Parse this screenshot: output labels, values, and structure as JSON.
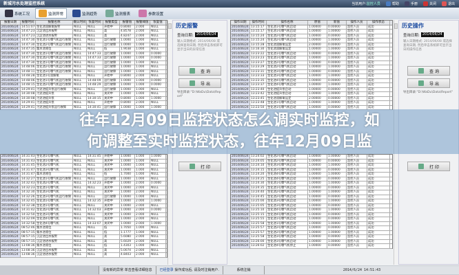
{
  "app": {
    "title": "新城污水处理监控系统",
    "current_user_label": "当前用户:",
    "current_user": "监控人员",
    "top_buttons": [
      {
        "label": "帮助",
        "icon": "help-icon",
        "color": "#4a7bc0"
      },
      {
        "label": "手册",
        "icon": "manual-icon",
        "color": "#446"
      },
      {
        "label": "关闭",
        "icon": "close-icon",
        "color": "#c33"
      },
      {
        "label": "退出",
        "icon": "exit-icon",
        "color": "#d55"
      }
    ]
  },
  "toolbar": [
    {
      "label": "系统工况",
      "icon": "gears-icon",
      "color": "#334"
    },
    {
      "label": "监测异常",
      "icon": "alarm-bell-icon",
      "color": "#e8a030",
      "active": true
    },
    {
      "label": "监测趋势",
      "icon": "trend-chart-icon",
      "color": "#2a4a90"
    },
    {
      "label": "监测报表",
      "icon": "report-icon",
      "color": "#7a9"
    },
    {
      "label": "参数设置",
      "icon": "settings-icon",
      "color": "#c7a"
    }
  ],
  "alarm_table": {
    "headers": [
      "报警日期",
      "报警时间",
      "报警名称",
      "确认时间",
      "恢复时间",
      "报警类型",
      "报警值",
      "报警阈值",
      "恢复值"
    ],
    "rows": [
      [
        "2014/06/24",
        "14:51:07",
        "生化池溶解氧报警",
        "NULL",
        "NULL",
        "开始中",
        "0.8000",
        "2.000",
        "NULL"
      ],
      [
        "2014/06/24",
        "14:47:23",
        "沉淀池出水报警",
        "NULL",
        "NULL",
        "高",
        "4.8578",
        "2.000",
        "NULL"
      ],
      [
        "2014/06/24",
        "14:47:23",
        "沉淀池进水报警",
        "NULL",
        "NULL",
        "高",
        "4.8247",
        "2.000",
        "NULL"
      ],
      [
        "2014/06/24",
        "14:47:30",
        "生化池1号曝气机运行故障",
        "NULL",
        "NULL",
        "运行故障",
        "1.0000",
        "1.000",
        "NULL"
      ],
      [
        "2014/06/24",
        "14:47:30",
        "生化池2号曝气机运行故障",
        "NULL",
        "NULL",
        "运行故障",
        "1.0000",
        "1.000",
        "NULL"
      ],
      [
        "2014/06/24",
        "14:47:35",
        "集水池液位",
        "NULL",
        "NULL",
        "低",
        "1.9038",
        "1.000",
        "NULL"
      ],
      [
        "2014/06/24",
        "14:47:30",
        "生化池1号曝气机运行故障",
        "NULL",
        "14:47:33",
        "运行故障",
        "1.0000",
        "1.000",
        "0.0000"
      ],
      [
        "2014/06/24",
        "14:47:30",
        "生化池2号曝气机运行故障",
        "NULL",
        "14:47:33",
        "运行故障",
        "1.0000",
        "1.000",
        "0.0000"
      ],
      [
        "2014/06/24",
        "14:47:30",
        "生化池1号曝气机运行故障",
        "NULL",
        "NULL",
        "运行故障",
        "1.0000",
        "1.000",
        "NULL"
      ],
      [
        "2014/06/24",
        "14:48:06",
        "生化池2号曝气机运行故障",
        "NULL",
        "NULL",
        "运行故障",
        "1.0000",
        "1.000",
        "NULL"
      ],
      [
        "2014/06/24",
        "14:48:11",
        "生化池3号曝气机运行故障",
        "NULL",
        "NULL",
        "运行故障",
        "1.0000",
        "1.000",
        "NULL"
      ],
      [
        "2014/06/24",
        "14:48:28",
        "生化池1号溶解氧",
        "NULL",
        "NULL",
        "开始中",
        "0.8000",
        "2.000",
        "NULL"
      ],
      [
        "2014/06/24",
        "14:48:06",
        "生化池1号曝气机运行故障",
        "NULL",
        "14:48:09",
        "运行故障",
        "1.0000",
        "1.000",
        "0.0000"
      ],
      [
        "2014/06/24",
        "14:48:15",
        "生化池2号曝气机运行故障",
        "NULL",
        "14:48:29",
        "运行故障",
        "1.0000",
        "1.000",
        "0.0000"
      ],
      [
        "2014/06/24",
        "14:29:41",
        "污泥池提升泵运行故障",
        "NULL",
        "NULL",
        "运行故障",
        "1.0000",
        "1.000",
        "NULL"
      ],
      [
        "2014/06/24",
        "14:30:08",
        "污泥池提升泵",
        "NULL",
        "NULL",
        "关闭中",
        "1.0000",
        "1.000",
        "NULL"
      ],
      [
        "2014/06/24",
        "14:30:08",
        "污泥池提升泵",
        "NULL",
        "14:30:15",
        "关闭中",
        "0.8000",
        "1.000",
        "1.0000"
      ],
      [
        "2014/06/24",
        "14:29:41",
        "污泥池提升泵",
        "NULL",
        "NULL",
        "开始中",
        "0.8000",
        "2.000",
        "NULL"
      ],
      [
        "2014/06/24",
        "14:29:41",
        "污泥池提升泵运行故障",
        "NULL",
        "14:30:41",
        "运行故障",
        "1.0000",
        "1.000",
        "1.0000"
      ],
      [
        "2014/06/24",
        "14:31:43",
        "生化池1号曝气机",
        "NULL",
        "14:31:45",
        "开始中",
        "1.0000",
        "1.000",
        "1.0000"
      ],
      [
        "2014/06/24",
        "14:31:43",
        "生化池1号曝气机",
        "NULL",
        "NULL",
        "关闭中",
        "1.0000",
        "1.000",
        "NULL"
      ],
      [
        "2014/06/24",
        "14:31:45",
        "生化池2号曝气机",
        "NULL",
        "NULL",
        "关闭中",
        "1.0000",
        "1.000",
        "NULL"
      ],
      [
        "2014/06/24",
        "14:31:47",
        "生化池3号曝气机",
        "NULL",
        "NULL",
        "关闭中",
        "1.0000",
        "1.000",
        "NULL"
      ],
      [
        "2014/06/24",
        "14:31:47",
        "集水池液位",
        "NULL",
        "NULL",
        "低",
        "1.7000",
        "1.000",
        "NULL"
      ],
      [
        "2014/06/24",
        "14:32:27",
        "生化池1号曝气机运行故障",
        "NULL",
        "NULL",
        "运行故障",
        "1.0000",
        "1.000",
        "NULL"
      ],
      [
        "2014/06/24",
        "14:32:43",
        "生化池2号曝气机",
        "NULL",
        "14:32:23",
        "开始中",
        "1.0000",
        "2.000",
        "0.0000"
      ],
      [
        "2014/06/24",
        "14:32:23",
        "生化池1号曝气机",
        "NULL",
        "NULL",
        "关闭中",
        "1.0000",
        "2.000",
        "NULL"
      ],
      [
        "2014/06/24",
        "14:32:30",
        "生化池3号曝气机",
        "NULL",
        "NULL",
        "关闭中",
        "1.0000",
        "2.000",
        "NULL"
      ],
      [
        "2014/06/24",
        "14:32:26",
        "生化池3号曝气机运行故障",
        "NULL",
        "NULL",
        "运行故障",
        "1.0000",
        "1.000",
        "NULL"
      ],
      [
        "2014/06/24",
        "14:32:45",
        "生化池1号曝气机",
        "NULL",
        "14:32:35",
        "开始中",
        "1.0000",
        "2.000",
        "1.0000"
      ],
      [
        "2014/06/24",
        "14:32:38",
        "生化池1号曝气机",
        "NULL",
        "NULL",
        "关闭中",
        "1.0000",
        "2.000",
        "NULL"
      ],
      [
        "2014/06/24",
        "14:31:42",
        "生化池2号曝气机",
        "NULL",
        "14:32:03",
        "开始中",
        "1.0000",
        "2.000",
        "0.0000"
      ],
      [
        "2014/06/24",
        "14:32:50",
        "生化池3号曝气机",
        "NULL",
        "NULL",
        "关闭中",
        "1.0000",
        "2.000",
        "NULL"
      ],
      [
        "2014/06/24",
        "14:32:09",
        "生化池4号曝气机",
        "NULL",
        "NULL",
        "关闭中",
        "1.0000",
        "2.000",
        "NULL"
      ],
      [
        "2014/06/24",
        "14:32:58",
        "生化池4号曝气机",
        "NULL",
        "14:33:07",
        "关闭中",
        "1.0000",
        "2.000",
        "1.0000"
      ],
      [
        "2014/06/24",
        "08:52:46",
        "集水池液位",
        "NULL",
        "NULL",
        "低",
        "1.7050",
        "1.000",
        "NULL"
      ],
      [
        "2014/06/24",
        "08:57:15",
        "集水池液位",
        "NULL",
        "NULL",
        "低",
        "1.1777",
        "1.000",
        "NULL"
      ],
      [
        "2014/06/24",
        "08:57:15",
        "沉淀池出水报警",
        "NULL",
        "NULL",
        "高",
        "5.6080",
        "2.000",
        "NULL"
      ],
      [
        "2014/06/24",
        "08:57:15",
        "沉淀池进水报警",
        "NULL",
        "NULL",
        "高",
        "5.6029",
        "2.000",
        "NULL"
      ],
      [
        "2014/06/24",
        "13:08:36",
        "集水池液位",
        "NULL",
        "NULL",
        "低",
        "1.4303",
        "1.000",
        "NULL"
      ],
      [
        "2014/06/24",
        "13:08:36",
        "沉淀池出水报警",
        "NULL",
        "NULL",
        "高",
        "5.0074",
        "2.000",
        "NULL"
      ],
      [
        "2014/06/24",
        "13:08:36",
        "沉淀池进水报警",
        "NULL",
        "NULL",
        "高",
        "4.8403",
        "2.000",
        "NULL"
      ]
    ]
  },
  "op_table": {
    "headers": [
      "操作日期",
      "操作时间",
      "操作名称",
      "原值",
      "新值",
      "操作人员",
      "操作状态"
    ],
    "rows": [
      [
        "2014/06/24",
        "13:15:17",
        "生化池1号曝气机启动",
        "1.00000",
        "0.00000",
        "监控人员",
        "成功"
      ],
      [
        "2014/06/24",
        "13:15:17",
        "生化池1号曝气机启动",
        "1.00000",
        "1.00000",
        "监控人员",
        "成功"
      ],
      [
        "2014/06/24",
        "13:15:24",
        "生化池2号曝气机启动",
        "1.00000",
        "0.00000",
        "监控人员",
        "成功"
      ],
      [
        "2014/06/24",
        "13:15:24",
        "生化池2号曝气机启动",
        "1.00000",
        "1.00000",
        "监控人员",
        "成功"
      ],
      [
        "2014/06/24",
        "13:15:28",
        "生化池溶解氧设定",
        "2.00000",
        "0.00000",
        "监控人员",
        "成功"
      ],
      [
        "2014/06/24",
        "13:16:30",
        "生化池溶解氧设定",
        "1.00000",
        "1.00000",
        "监控人员",
        "成功"
      ],
      [
        "2014/06/24",
        "13:23:22",
        "生化池1号曝气机启动",
        "1.00000",
        "0.00000",
        "监控人员",
        "成功"
      ],
      [
        "2014/06/24",
        "13:23:23",
        "生化池1号曝气机启动",
        "1.00000",
        "1.00000",
        "监控人员",
        "成功"
      ],
      [
        "2014/06/24",
        "13:23:27",
        "生化池2号曝气机启动",
        "1.00000",
        "0.00000",
        "监控人员",
        "成功"
      ],
      [
        "2014/06/24",
        "13:23:29",
        "生化池2号曝气机启动",
        "1.00000",
        "1.00000",
        "监控人员",
        "成功"
      ],
      [
        "2014/06/24",
        "13:23:31",
        "生化池3号曝气机启动",
        "1.00000",
        "0.00000",
        "监控人员",
        "成功"
      ],
      [
        "2014/06/24",
        "13:23:33",
        "生化池3号曝气机启动",
        "1.00000",
        "1.00000",
        "监控人员",
        "成功"
      ],
      [
        "2014/06/24",
        "13:23:35",
        "生化池4号曝气机启动",
        "1.00000",
        "0.00000",
        "监控人员",
        "成功"
      ],
      [
        "2014/06/24",
        "13:23:37",
        "生化池4号曝气机启动",
        "1.00000",
        "1.00000",
        "监控人员",
        "成功"
      ],
      [
        "2014/06/24",
        "13:23:40",
        "生化池提升泵启动",
        "1.00000",
        "0.00000",
        "监控人员",
        "成功"
      ],
      [
        "2014/06/24",
        "13:23:42",
        "生化池提升泵启动",
        "1.00000",
        "1.00000",
        "监控人员",
        "成功"
      ],
      [
        "2014/06/24",
        "13:23:45",
        "生化池溶解氧设定",
        "2.00000",
        "0.00000",
        "监控人员",
        "成功"
      ],
      [
        "2014/06/24",
        "13:23:48",
        "生化池1号曝气机启动",
        "1.00000",
        "1.00000",
        "监控人员",
        "成功"
      ],
      [
        "2014/06/24",
        "13:23:50",
        "生化池1号曝气机启动",
        "1.00000",
        "0.00000",
        "监控人员",
        "成功"
      ],
      [
        "2014/06/24",
        "13:24:02",
        "生化池2号曝气机启动",
        "1.00000",
        "1.00000",
        "监控人员",
        "成功"
      ],
      [
        "2014/06/24",
        "13:24:05",
        "生化池2号曝气机启动",
        "1.00000",
        "0.00000",
        "监控人员",
        "成功"
      ],
      [
        "2014/06/24",
        "13:24:10",
        "生化池3号曝气机启动",
        "1.00000",
        "1.00000",
        "监控人员",
        "成功"
      ],
      [
        "2014/06/24",
        "13:24:15",
        "生化池3号曝气机启动",
        "1.00000",
        "0.00000",
        "监控人员",
        "成功"
      ],
      [
        "2014/06/24",
        "13:24:20",
        "生化池4号曝气机启动",
        "1.00000",
        "1.00000",
        "监控人员",
        "成功"
      ],
      [
        "2014/06/24",
        "13:24:25",
        "生化池4号曝气机启动",
        "1.00000",
        "0.00000",
        "监控人员",
        "成功"
      ],
      [
        "2014/06/24",
        "13:24:30",
        "生化池1号曝气机启动",
        "1.00000",
        "1.00000",
        "监控人员",
        "成功"
      ],
      [
        "2014/06/24",
        "13:24:35",
        "生化池1号曝气机启动",
        "1.00000",
        "0.00000",
        "监控人员",
        "成功"
      ],
      [
        "2014/06/24",
        "13:24:40",
        "生化池2号曝气机启动",
        "1.00000",
        "1.00000",
        "监控人员",
        "成功"
      ],
      [
        "2014/06/24",
        "13:24:45",
        "生化池2号曝气机启动",
        "1.00000",
        "0.00000",
        "监控人员",
        "成功"
      ],
      [
        "2014/06/24",
        "13:25:00",
        "生化池3号曝气机启动",
        "1.00000",
        "1.00000",
        "监控人员",
        "成功"
      ],
      [
        "2014/06/24",
        "13:25:05",
        "生化池3号曝气机启动",
        "1.00000",
        "0.00000",
        "监控人员",
        "成功"
      ],
      [
        "2014/06/24",
        "13:25:10",
        "生化池4号曝气机启动",
        "1.00000",
        "1.00000",
        "监控人员",
        "成功"
      ],
      [
        "2014/06/24",
        "13:25:15",
        "生化池4号曝气机启动",
        "1.00000",
        "0.00000",
        "监控人员",
        "成功"
      ],
      [
        "2014/06/24",
        "13:25:55",
        "生化池1号曝气机启动",
        "1.00000",
        "0.00000",
        "监控人员",
        "成功"
      ],
      [
        "2014/06/24",
        "13:25:58",
        "生化池1号曝气机启动",
        "1.00000",
        "1.00000",
        "监控人员",
        "成功"
      ],
      [
        "2014/06/24",
        "13:25:57",
        "生化池2号曝气机启动",
        "1.00000",
        "0.00000",
        "监控人员",
        "成功"
      ],
      [
        "2014/06/24",
        "13:25:57",
        "生化池2号曝气机启动",
        "1.00000",
        "1.00000",
        "监控人员",
        "成功"
      ],
      [
        "2014/06/24",
        "13:25:58",
        "生化池3号曝气机启动",
        "1.00000",
        "0.00000",
        "监控人员",
        "成功"
      ],
      [
        "2014/06/24",
        "13:26:00",
        "生化池3号曝气机启动",
        "1.00000",
        "1.00000",
        "监控人员",
        "成功"
      ],
      [
        "2014/06/24",
        "13:26:02",
        "生化池4号曝气机停止",
        "1.00000",
        "0.00000",
        "监控人员",
        "成功"
      ]
    ]
  },
  "alarm_panel": {
    "title": "历史报警",
    "query_label": "查询日期:",
    "query_value": "2014/06/24",
    "hint": "输入日期格式: 2014/06/08 或选择查询日期, 然后单击系统即可显示当日的异常信息",
    "buttons": [
      "查 询",
      "导 出",
      "打 印"
    ],
    "dir_label": "导出目录:",
    "dir_value": "\"D:\\WaDu\\Data\\Report\""
  },
  "op_panel": {
    "title": "历史操作",
    "query_label": "查询日期:",
    "query_value": "2014/06/24",
    "hint": "输入日期格式: 2014/06/08 或选择查询日期, 然后单击系统即可显示当日的操作信息",
    "buttons": [
      "查 询",
      "导 出",
      "打 印"
    ],
    "dir_label": "导出目录:",
    "dir_value": "\"D:\\WaDu\\Data\\Report\""
  },
  "status": {
    "alarm_msg": "没有新的异常 单击查看详细信息",
    "login_state": "已经登录",
    "login_msg": "操作成功后, 请及时注销用户.",
    "logout": "系统注销",
    "datetime": "2014/6/24 14:51:43"
  },
  "headline": {
    "line1": "往年12月09日监控状态怎么调实时监控，如",
    "line2": "何调整至实时监控状态，往年12月09日监"
  }
}
